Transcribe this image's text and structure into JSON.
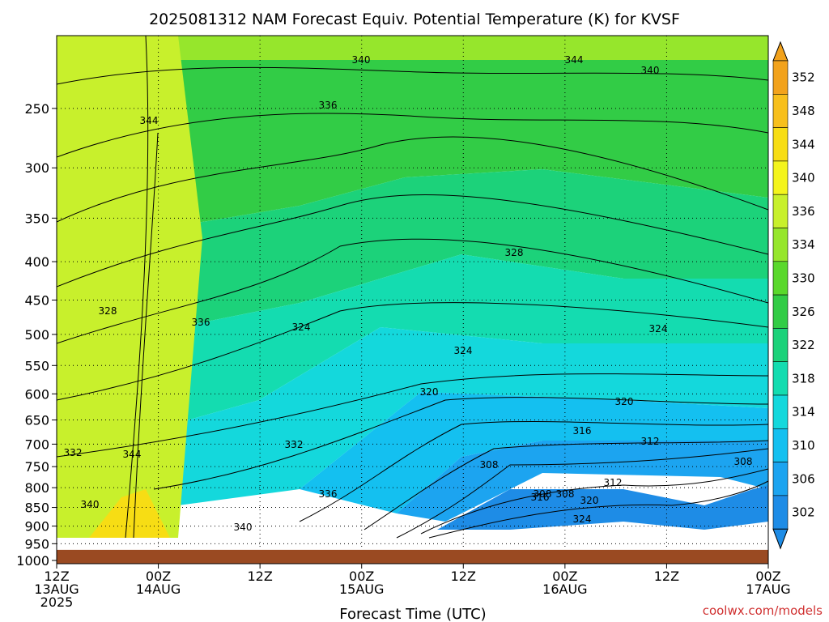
{
  "chart_data": {
    "type": "heatmap",
    "title": "2025081312 NAM Forecast Equiv. Potential Temperature (K) for KVSF",
    "xlabel": "Forecast Time (UTC)",
    "credit": "coolwx.com/models",
    "x_ticks": [
      {
        "hour": 0,
        "line1": "12Z",
        "line2": "13AUG",
        "line3": "2025"
      },
      {
        "hour": 12,
        "line1": "00Z",
        "line2": "14AUG",
        "line3": ""
      },
      {
        "hour": 24,
        "line1": "12Z",
        "line2": "",
        "line3": ""
      },
      {
        "hour": 36,
        "line1": "00Z",
        "line2": "15AUG",
        "line3": ""
      },
      {
        "hour": 48,
        "line1": "12Z",
        "line2": "",
        "line3": ""
      },
      {
        "hour": 60,
        "line1": "00Z",
        "line2": "16AUG",
        "line3": ""
      },
      {
        "hour": 72,
        "line1": "12Z",
        "line2": "",
        "line3": ""
      },
      {
        "hour": 84,
        "line1": "00Z",
        "line2": "17AUG",
        "line3": ""
      }
    ],
    "xlim": [
      0,
      84
    ],
    "pressure_ticks": [
      250,
      300,
      350,
      400,
      450,
      500,
      550,
      600,
      650,
      700,
      750,
      800,
      850,
      900,
      950,
      1000
    ],
    "ylim_hpa": [
      200,
      1010
    ],
    "ground_hpa": 968,
    "colorbar_labels": [
      "352",
      "348",
      "344",
      "340",
      "336",
      "334",
      "330",
      "326",
      "322",
      "318",
      "314",
      "310",
      "306",
      "302"
    ],
    "colorbar_colors": [
      "#f2a21c",
      "#f7bf1c",
      "#f7dd14",
      "#f4f41c",
      "#c8f02c",
      "#96e62c",
      "#5ad82c",
      "#32cc46",
      "#1cd27a",
      "#14dcb0",
      "#14d8dc",
      "#14c0f0",
      "#1ca4f0",
      "#1e8ce6"
    ],
    "grid": true,
    "contour_labels": [
      "340",
      "344",
      "340",
      "336",
      "344",
      "328",
      "328",
      "336",
      "324",
      "324",
      "324",
      "320",
      "320",
      "316",
      "312",
      "332",
      "332",
      "344",
      "308",
      "308",
      "312",
      "308",
      "316",
      "308",
      "320",
      "324",
      "336",
      "340",
      "340"
    ],
    "colors": {
      "ground": "#9a4a22",
      "grid": "#000000",
      "contour": "#000000"
    }
  }
}
